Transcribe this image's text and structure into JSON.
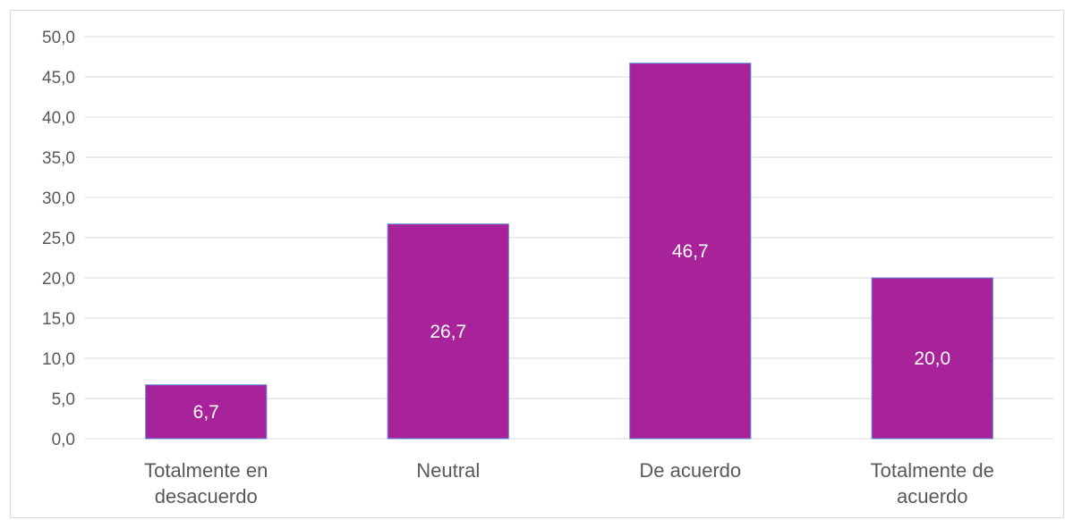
{
  "chart_data": {
    "type": "bar",
    "categories": [
      [
        "Totalmente en",
        "desacuerdo"
      ],
      [
        "Neutral"
      ],
      [
        "De acuerdo"
      ],
      [
        "Totalmente de",
        "acuerdo"
      ]
    ],
    "values": [
      6.7,
      26.7,
      46.7,
      20.0
    ],
    "data_labels": [
      "6,7",
      "26,7",
      "46,7",
      "20,0"
    ],
    "ylim": [
      0,
      50
    ],
    "yticks": [
      0,
      5,
      10,
      15,
      20,
      25,
      30,
      35,
      40,
      45,
      50
    ],
    "ytick_labels": [
      "0,0",
      "5,0",
      "10,0",
      "15,0",
      "20,0",
      "25,0",
      "30,0",
      "35,0",
      "40,0",
      "45,0",
      "50,0"
    ],
    "title": "",
    "xlabel": "",
    "ylabel": "",
    "grid": true,
    "legend": "none",
    "colors": {
      "bar_fill": "#a8229a",
      "bar_edge": "#5b8fd6",
      "grid": "#d9d9d9",
      "axis": "#d9d9d9",
      "label": "#595959",
      "data_label": "#ffffff"
    }
  }
}
